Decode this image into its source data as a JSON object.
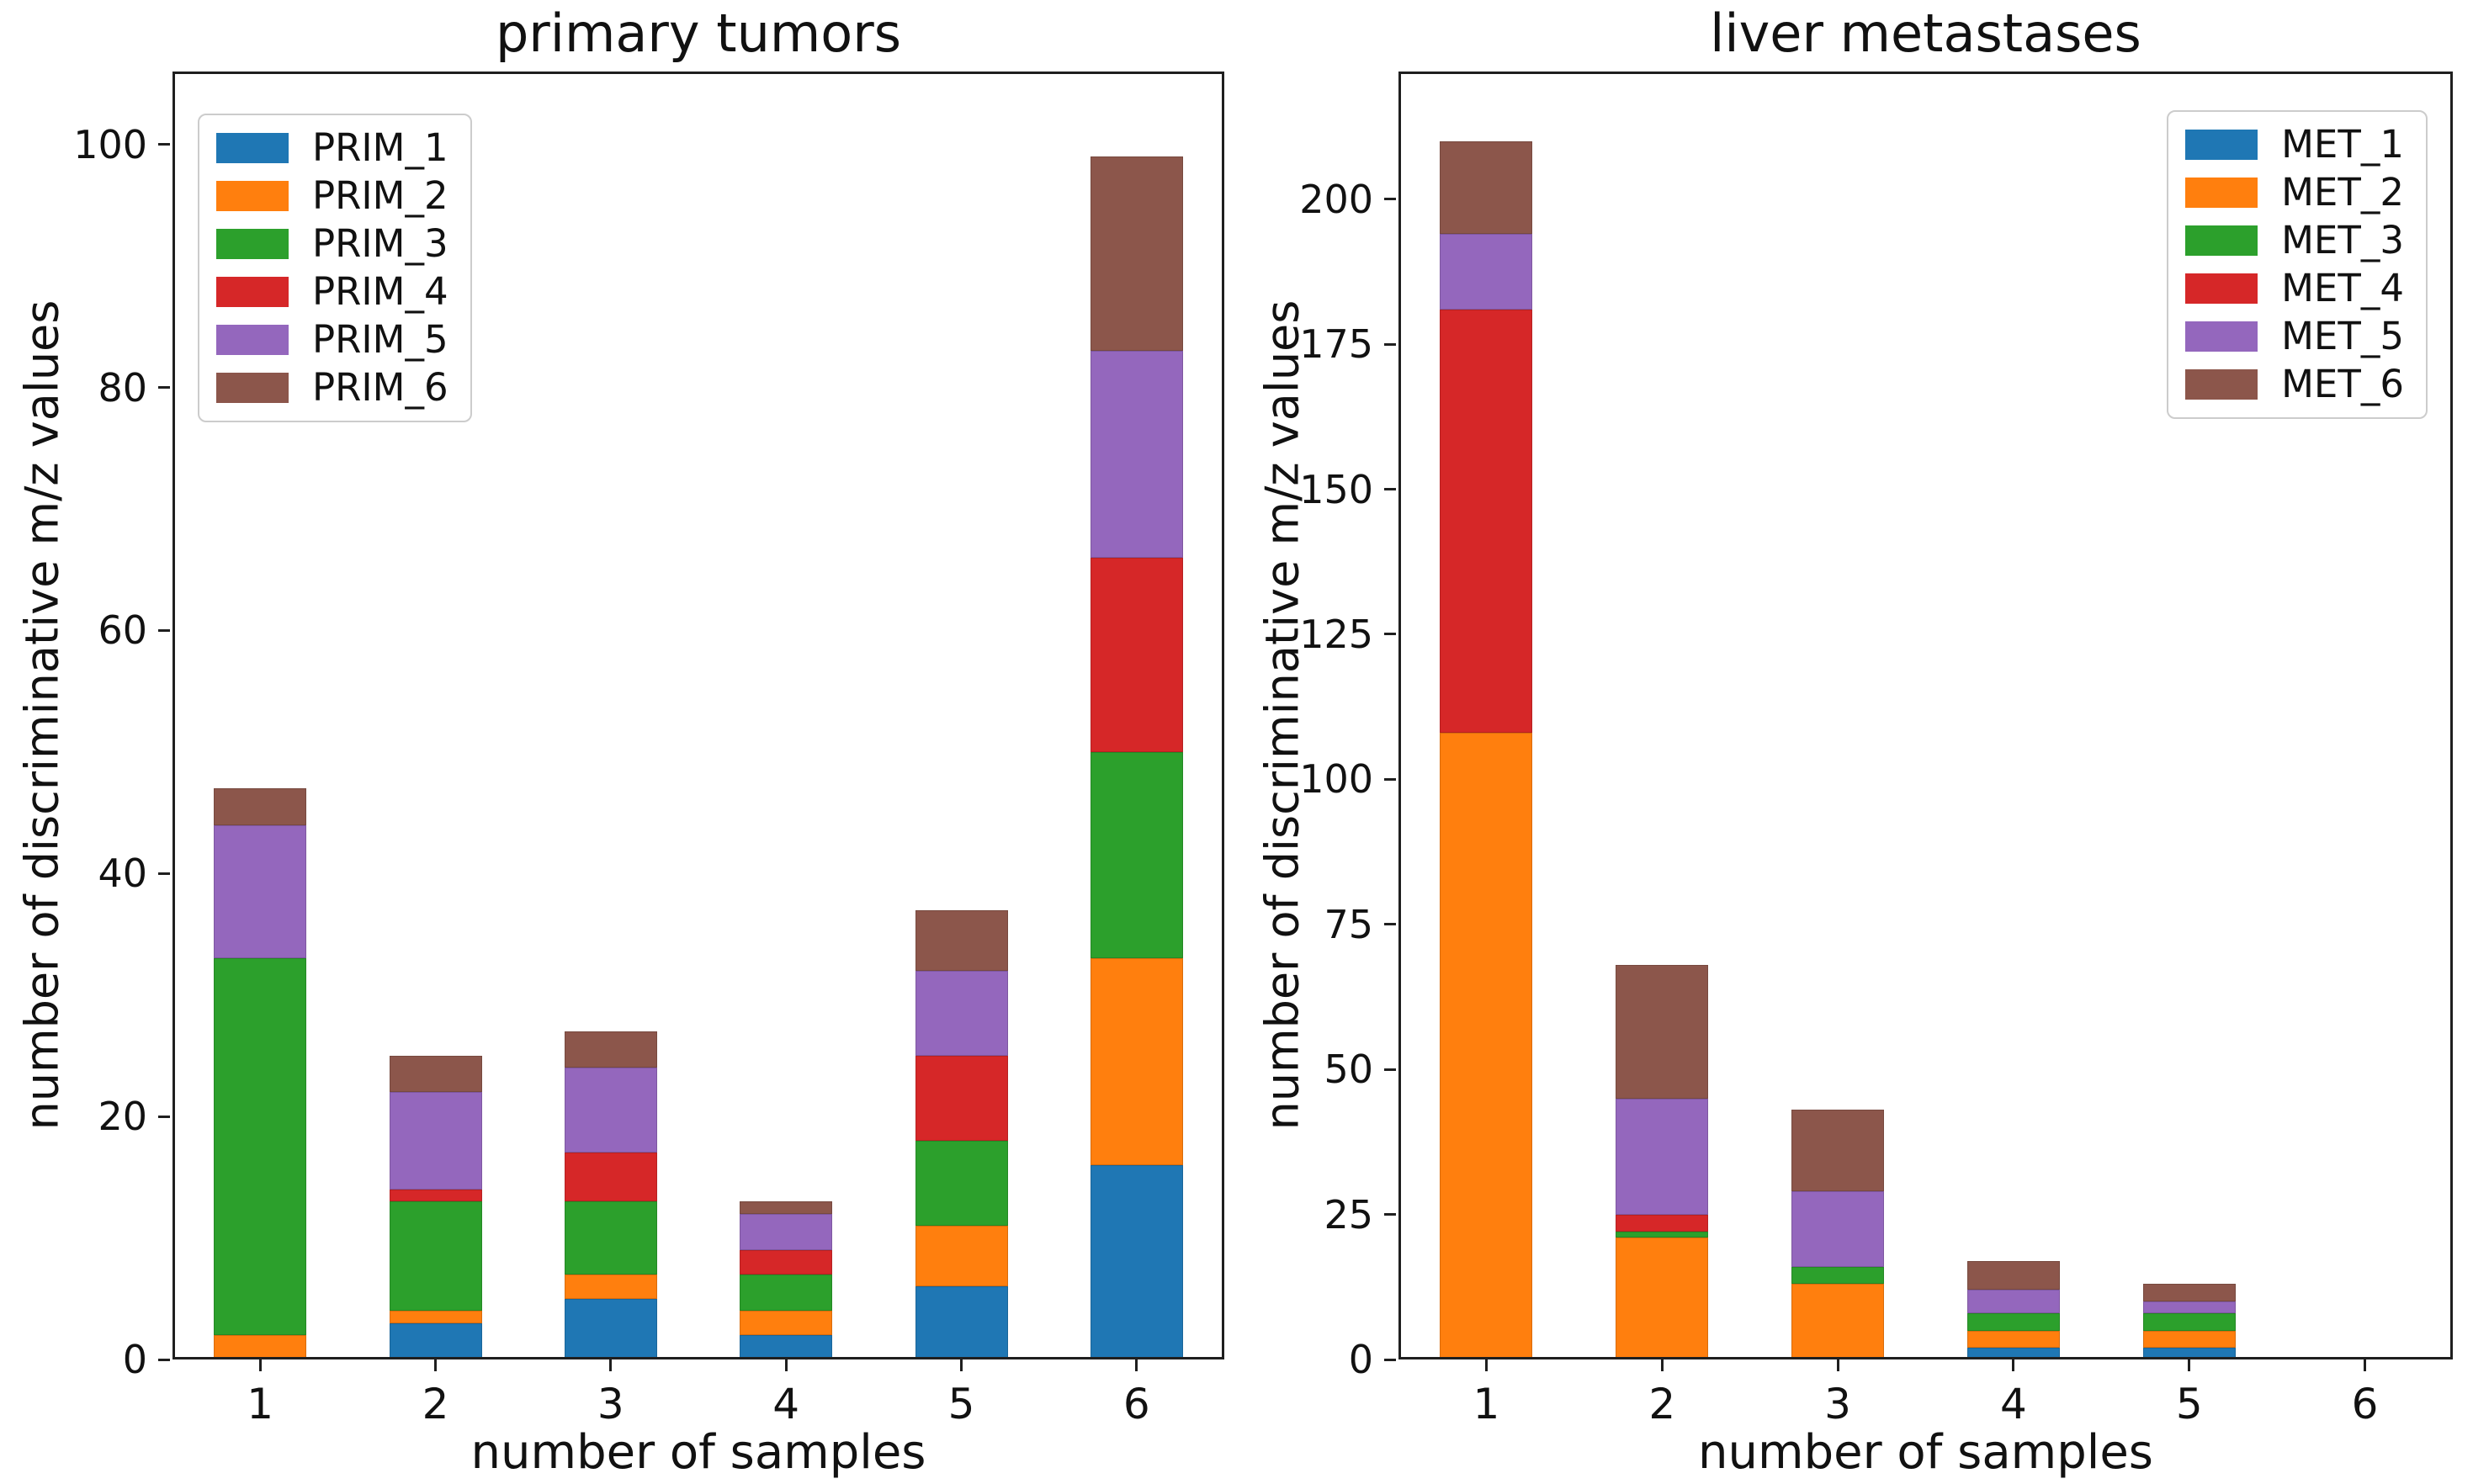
{
  "figure": {
    "background": "#ffffff",
    "text_color": "#111111",
    "spine_color": "#1f1f1f"
  },
  "chart_data": [
    {
      "type": "bar",
      "stacked": true,
      "title": "primary tumors",
      "xlabel": "number of samples",
      "ylabel": "number of discriminative m/z values",
      "categories": [
        "1",
        "2",
        "3",
        "4",
        "5",
        "6"
      ],
      "yticks": [
        0,
        20,
        40,
        60,
        80,
        100
      ],
      "ylim": [
        0,
        106
      ],
      "grid": false,
      "legend_position": "upper-left",
      "series": [
        {
          "name": "PRIM_1",
          "color": "#1f77b4",
          "values": [
            0,
            3,
            5,
            2,
            6,
            16
          ]
        },
        {
          "name": "PRIM_2",
          "color": "#ff7f0e",
          "values": [
            2,
            1,
            2,
            2,
            5,
            17
          ]
        },
        {
          "name": "PRIM_3",
          "color": "#2ca02c",
          "values": [
            31,
            9,
            6,
            3,
            7,
            17
          ]
        },
        {
          "name": "PRIM_4",
          "color": "#d62728",
          "values": [
            0,
            1,
            4,
            2,
            7,
            16
          ]
        },
        {
          "name": "PRIM_5",
          "color": "#9467bd",
          "values": [
            11,
            8,
            7,
            3,
            7,
            17
          ]
        },
        {
          "name": "PRIM_6",
          "color": "#8c564b",
          "values": [
            3,
            3,
            3,
            1,
            5,
            16
          ]
        }
      ],
      "totals": [
        47,
        25,
        27,
        13,
        37,
        99
      ]
    },
    {
      "type": "bar",
      "stacked": true,
      "title": "liver metastases",
      "xlabel": "number of samples",
      "ylabel": "number of discriminative m/z values",
      "categories": [
        "1",
        "2",
        "3",
        "4",
        "5",
        "6"
      ],
      "yticks": [
        0,
        25,
        50,
        75,
        100,
        125,
        150,
        175,
        200
      ],
      "ylim": [
        0,
        222
      ],
      "grid": false,
      "legend_position": "upper-right",
      "series": [
        {
          "name": "MET_1",
          "color": "#1f77b4",
          "values": [
            0,
            0,
            0,
            2,
            2,
            0
          ]
        },
        {
          "name": "MET_2",
          "color": "#ff7f0e",
          "values": [
            108,
            21,
            13,
            3,
            3,
            0
          ]
        },
        {
          "name": "MET_3",
          "color": "#2ca02c",
          "values": [
            0,
            1,
            3,
            3,
            3,
            0
          ]
        },
        {
          "name": "MET_4",
          "color": "#d62728",
          "values": [
            73,
            3,
            0,
            0,
            0,
            0
          ]
        },
        {
          "name": "MET_5",
          "color": "#9467bd",
          "values": [
            13,
            20,
            13,
            4,
            2,
            0
          ]
        },
        {
          "name": "MET_6",
          "color": "#8c564b",
          "values": [
            16,
            23,
            14,
            5,
            3,
            0
          ]
        }
      ],
      "totals": [
        210,
        68,
        43,
        17,
        13,
        0
      ]
    }
  ]
}
